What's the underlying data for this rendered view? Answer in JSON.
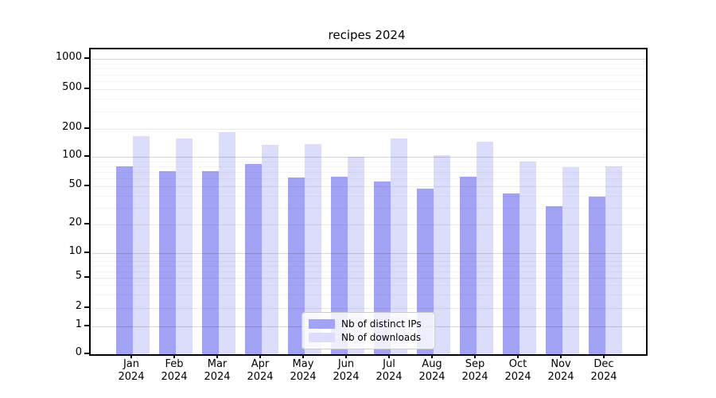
{
  "chart_data": {
    "type": "bar",
    "title": "recipes 2024",
    "categories": [
      {
        "month": "Jan",
        "year": "2024"
      },
      {
        "month": "Feb",
        "year": "2024"
      },
      {
        "month": "Mar",
        "year": "2024"
      },
      {
        "month": "Apr",
        "year": "2024"
      },
      {
        "month": "May",
        "year": "2024"
      },
      {
        "month": "Jun",
        "year": "2024"
      },
      {
        "month": "Jul",
        "year": "2024"
      },
      {
        "month": "Aug",
        "year": "2024"
      },
      {
        "month": "Sep",
        "year": "2024"
      },
      {
        "month": "Oct",
        "year": "2024"
      },
      {
        "month": "Nov",
        "year": "2024"
      },
      {
        "month": "Dec",
        "year": "2024"
      }
    ],
    "series": [
      {
        "name": "Nb of distinct IPs",
        "color": "#a3a3f5",
        "values": [
          80,
          72,
          71,
          84,
          62,
          63,
          56,
          47,
          63,
          42,
          31,
          39
        ]
      },
      {
        "name": "Nb of downloads",
        "color": "#dcdcfb",
        "values": [
          168,
          157,
          183,
          135,
          138,
          100,
          158,
          105,
          146,
          90,
          78,
          80
        ]
      }
    ],
    "y_axis": {
      "scale": "symlog",
      "ticks": [
        0,
        1,
        2,
        5,
        10,
        20,
        50,
        100,
        200,
        500,
        1000
      ],
      "minor_gridlines": [
        3,
        4,
        6,
        7,
        8,
        9,
        30,
        40,
        60,
        70,
        80,
        90,
        300,
        400,
        600,
        700,
        800,
        900
      ],
      "ylim": [
        0,
        1000
      ]
    },
    "legend": {
      "position": "lower-center"
    },
    "grid": true,
    "colors": {
      "axis": "#000000",
      "gridline_decade": "#c6c6c6",
      "gridline_light": "#e6e6e6"
    }
  }
}
